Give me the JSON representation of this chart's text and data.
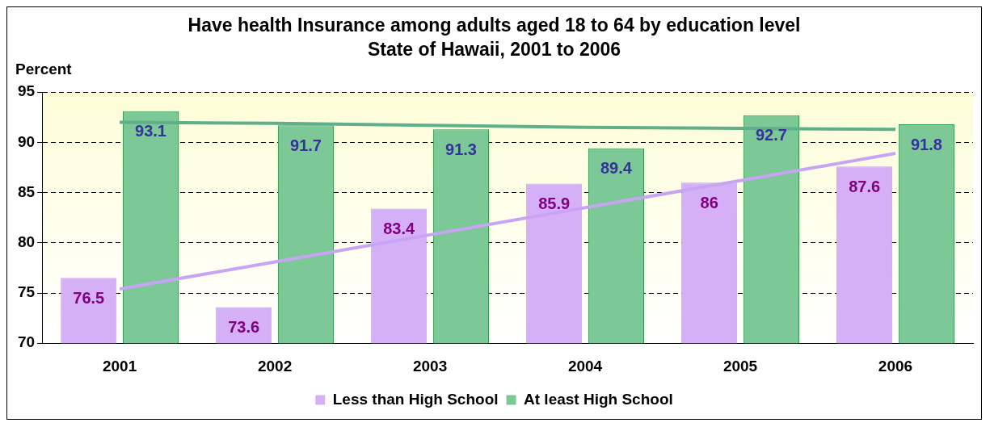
{
  "chart_data": {
    "type": "bar",
    "title": "Have health Insurance among adults aged 18 to 64 by education level",
    "subtitle": "State of Hawaii, 2001 to 2006",
    "ylabel": "Percent",
    "categories": [
      "2001",
      "2002",
      "2003",
      "2004",
      "2005",
      "2006"
    ],
    "series": [
      {
        "name": "Less than High School",
        "color": "#d6b0f7",
        "values": [
          76.5,
          73.6,
          83.4,
          85.9,
          86,
          87.6
        ],
        "value_labels": [
          "76.5",
          "73.6",
          "83.4",
          "85.9",
          "86",
          "87.6"
        ]
      },
      {
        "name": "At least High School",
        "color": "#7cc896",
        "values": [
          93.1,
          91.7,
          91.3,
          89.4,
          92.7,
          91.8
        ],
        "value_labels": [
          "93.1",
          "91.7",
          "91.3",
          "89.4",
          "92.7",
          "91.8"
        ]
      },
      {
        "type": "line",
        "color": "#c8a4f4",
        "values": [
          75.4,
          78.1,
          80.8,
          83.5,
          86.2,
          88.9
        ]
      },
      {
        "type": "line",
        "color": "#5fb08a",
        "values": [
          92.0,
          91.9,
          91.7,
          91.5,
          91.4,
          91.3
        ]
      }
    ],
    "ylim": [
      70,
      95
    ],
    "yticks": [
      70,
      75,
      80,
      85,
      90,
      95
    ],
    "grid": "y",
    "legend": "bottom",
    "marker": "none"
  }
}
